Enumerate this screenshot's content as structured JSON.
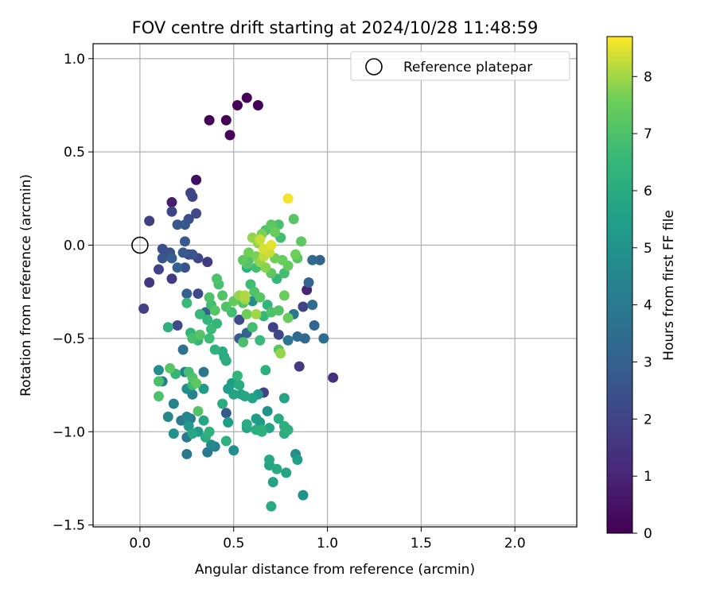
{
  "chart_data": {
    "type": "scatter",
    "title": "FOV centre drift starting at 2024/10/28 11:48:59",
    "xlabel": "Angular distance from reference (arcmin)",
    "ylabel": "Rotation from reference (arcmin)",
    "xlim": [
      -0.25,
      2.33
    ],
    "ylim": [
      -1.51,
      1.08
    ],
    "xticks": [
      0.0,
      0.5,
      1.0,
      1.5,
      2.0
    ],
    "xtick_labels": [
      "0.0",
      "0.5",
      "1.0",
      "1.5",
      "2.0"
    ],
    "yticks": [
      -1.5,
      -1.0,
      -0.5,
      0.0,
      0.5,
      1.0
    ],
    "ytick_labels": [
      "−1.5",
      "−1.0",
      "−0.5",
      "0.0",
      "0.5",
      "1.0"
    ],
    "grid": true,
    "colormap": "viridis",
    "colorbar": {
      "label": "Hours from first FF file",
      "min": 0,
      "max": 8.7,
      "ticks": [
        0,
        1,
        2,
        3,
        4,
        5,
        6,
        7,
        8
      ],
      "tick_labels": [
        "0",
        "1",
        "2",
        "3",
        "4",
        "5",
        "6",
        "7",
        "8"
      ]
    },
    "legend": {
      "placement": "top-right",
      "label": "Reference platepar"
    },
    "reference": {
      "x": 0.0,
      "y": 0.0
    },
    "points": [
      [
        0.37,
        0.67,
        0.05
      ],
      [
        0.46,
        0.67,
        0.05
      ],
      [
        0.48,
        0.59,
        0.05
      ],
      [
        0.52,
        0.75,
        0.05
      ],
      [
        0.57,
        0.79,
        0.05
      ],
      [
        0.63,
        0.75,
        0.05
      ],
      [
        0.3,
        0.35,
        0.4
      ],
      [
        0.17,
        0.23,
        0.8
      ],
      [
        0.05,
        0.13,
        1.8
      ],
      [
        0.17,
        0.18,
        2.0
      ],
      [
        0.28,
        0.26,
        2.0
      ],
      [
        0.27,
        0.28,
        2.1
      ],
      [
        0.3,
        0.17,
        2.2
      ],
      [
        0.26,
        0.14,
        2.3
      ],
      [
        0.2,
        0.11,
        2.7
      ],
      [
        0.24,
        0.11,
        2.7
      ],
      [
        0.24,
        0.02,
        2.8
      ],
      [
        0.12,
        -0.02,
        2.4
      ],
      [
        0.14,
        -0.04,
        2.2
      ],
      [
        0.16,
        -0.04,
        2.5
      ],
      [
        0.12,
        -0.07,
        2.6
      ],
      [
        0.17,
        -0.07,
        2.9
      ],
      [
        0.23,
        -0.04,
        2.8
      ],
      [
        0.26,
        -0.05,
        2.0
      ],
      [
        0.28,
        -0.05,
        2.6
      ],
      [
        0.31,
        -0.07,
        2.1
      ],
      [
        0.36,
        -0.09,
        1.7
      ],
      [
        0.2,
        -0.12,
        3.0
      ],
      [
        0.24,
        -0.12,
        2.5
      ],
      [
        0.1,
        -0.13,
        2.0
      ],
      [
        0.17,
        -0.18,
        1.7
      ],
      [
        0.05,
        -0.2,
        1.6
      ],
      [
        0.02,
        -0.34,
        1.9
      ],
      [
        0.25,
        -0.26,
        3.0
      ],
      [
        0.31,
        -0.26,
        2.2
      ],
      [
        0.35,
        -0.36,
        3.0
      ],
      [
        0.2,
        -0.43,
        2.2
      ],
      [
        0.23,
        -0.56,
        3.6
      ],
      [
        0.37,
        -0.28,
        7.0
      ],
      [
        0.38,
        -0.32,
        6.8
      ],
      [
        0.4,
        -0.35,
        7.2
      ],
      [
        0.32,
        -0.37,
        6.6
      ],
      [
        0.36,
        -0.4,
        6.4
      ],
      [
        0.41,
        -0.42,
        6.5
      ],
      [
        0.41,
        -0.18,
        7.0
      ],
      [
        0.42,
        -0.21,
        6.9
      ],
      [
        0.44,
        -0.27,
        7.1
      ],
      [
        0.46,
        -0.33,
        7.0
      ],
      [
        0.5,
        -0.3,
        7.4
      ],
      [
        0.49,
        -0.36,
        6.8
      ],
      [
        0.38,
        -0.45,
        6.6
      ],
      [
        0.37,
        -0.5,
        6.7
      ],
      [
        0.27,
        -0.47,
        6.4
      ],
      [
        0.28,
        -0.5,
        6.9
      ],
      [
        0.32,
        -0.48,
        7.1
      ],
      [
        0.31,
        -0.51,
        6.5
      ],
      [
        0.15,
        -0.44,
        6.2
      ],
      [
        0.25,
        -0.31,
        6.6
      ],
      [
        0.4,
        -0.56,
        6.3
      ],
      [
        0.44,
        -0.57,
        6.0
      ],
      [
        0.45,
        -0.6,
        5.8
      ],
      [
        0.46,
        -0.62,
        6.1
      ],
      [
        0.53,
        -0.27,
        7.9
      ],
      [
        0.56,
        -0.29,
        8.0
      ],
      [
        0.57,
        -0.37,
        7.6
      ],
      [
        0.62,
        -0.37,
        8.0
      ],
      [
        0.53,
        -0.4,
        2.2
      ],
      [
        0.6,
        -0.44,
        6.8
      ],
      [
        0.66,
        -0.38,
        6.5
      ],
      [
        0.7,
        -0.36,
        7.0
      ],
      [
        0.74,
        -0.35,
        7.1
      ],
      [
        0.77,
        -0.27,
        7.5
      ],
      [
        0.6,
        -0.3,
        4.8
      ],
      [
        0.64,
        -0.28,
        7.2
      ],
      [
        0.68,
        -0.32,
        6.4
      ],
      [
        0.79,
        -0.39,
        7.5
      ],
      [
        0.82,
        -0.37,
        3.8
      ],
      [
        0.53,
        -0.5,
        2.8
      ],
      [
        0.55,
        -0.52,
        6.9
      ],
      [
        0.57,
        -0.47,
        3.2
      ],
      [
        0.64,
        -0.51,
        6.6
      ],
      [
        0.71,
        -0.44,
        1.9
      ],
      [
        0.74,
        -0.48,
        2.1
      ],
      [
        0.74,
        -0.56,
        7.2
      ],
      [
        0.75,
        -0.58,
        7.9
      ],
      [
        0.79,
        -0.51,
        3.8
      ],
      [
        0.84,
        -0.49,
        3.4
      ],
      [
        0.88,
        -0.5,
        3.4
      ],
      [
        0.98,
        -0.5,
        3.5
      ],
      [
        0.93,
        -0.43,
        3.2
      ],
      [
        0.85,
        -0.65,
        1.7
      ],
      [
        1.03,
        -0.71,
        1.4
      ],
      [
        0.87,
        -0.33,
        2.0
      ],
      [
        0.92,
        -0.32,
        3.5
      ],
      [
        0.89,
        -0.24,
        1.0
      ],
      [
        0.9,
        -0.2,
        3.2
      ],
      [
        0.92,
        -0.08,
        3.3
      ],
      [
        0.96,
        -0.08,
        3.1
      ],
      [
        0.55,
        -0.08,
        7.3
      ],
      [
        0.57,
        -0.1,
        7.1
      ],
      [
        0.58,
        -0.04,
        7.6
      ],
      [
        0.6,
        0.04,
        7.9
      ],
      [
        0.64,
        0.03,
        8.3
      ],
      [
        0.62,
        -0.06,
        7.7
      ],
      [
        0.64,
        -0.09,
        7.9
      ],
      [
        0.66,
        -0.06,
        8.2
      ],
      [
        0.67,
        -0.12,
        7.8
      ],
      [
        0.7,
        -0.15,
        7.3
      ],
      [
        0.66,
        -0.02,
        8.4
      ],
      [
        0.7,
        0.0,
        8.5
      ],
      [
        0.69,
        -0.04,
        8.3
      ],
      [
        0.72,
        -0.07,
        7.6
      ],
      [
        0.67,
        0.08,
        7.0
      ],
      [
        0.7,
        0.11,
        7.3
      ],
      [
        0.72,
        0.07,
        7.5
      ],
      [
        0.75,
        0.04,
        6.8
      ],
      [
        0.74,
        0.11,
        6.9
      ],
      [
        0.79,
        0.25,
        8.6
      ],
      [
        0.82,
        0.14,
        7.2
      ],
      [
        0.86,
        0.02,
        7.3
      ],
      [
        0.83,
        -0.05,
        7.6
      ],
      [
        0.84,
        -0.07,
        7.2
      ],
      [
        0.79,
        -0.11,
        7.4
      ],
      [
        0.77,
        -0.15,
        6.8
      ],
      [
        0.73,
        -0.18,
        6.5
      ],
      [
        0.76,
        -0.08,
        7.5
      ],
      [
        0.62,
        -0.12,
        6.8
      ],
      [
        0.57,
        -0.12,
        6.2
      ],
      [
        0.59,
        -0.21,
        6.7
      ],
      [
        0.61,
        -0.25,
        7.0
      ],
      [
        0.56,
        -0.27,
        8.1
      ],
      [
        0.55,
        -0.31,
        7.1
      ],
      [
        0.65,
        0.06,
        7.7
      ],
      [
        0.63,
        0.01,
        7.9
      ],
      [
        0.58,
        -0.08,
        6.9
      ],
      [
        0.1,
        -0.67,
        4.8
      ],
      [
        0.12,
        -0.73,
        4.4
      ],
      [
        0.1,
        -0.73,
        6.9
      ],
      [
        0.1,
        -0.81,
        7.0
      ],
      [
        0.16,
        -0.66,
        7.2
      ],
      [
        0.19,
        -0.69,
        6.5
      ],
      [
        0.24,
        -0.68,
        4.2
      ],
      [
        0.26,
        -0.68,
        6.8
      ],
      [
        0.28,
        -0.71,
        7.0
      ],
      [
        0.28,
        -0.75,
        6.6
      ],
      [
        0.3,
        -0.74,
        7.3
      ],
      [
        0.25,
        -0.77,
        4.8
      ],
      [
        0.28,
        -0.8,
        4.3
      ],
      [
        0.34,
        -0.77,
        5.4
      ],
      [
        0.18,
        -0.85,
        4.4
      ],
      [
        0.31,
        -0.89,
        7.1
      ],
      [
        0.15,
        -0.92,
        4.6
      ],
      [
        0.22,
        -0.94,
        4.0
      ],
      [
        0.25,
        -0.92,
        4.5
      ],
      [
        0.27,
        -0.93,
        4.2
      ],
      [
        0.34,
        -0.94,
        5.8
      ],
      [
        0.26,
        -0.97,
        5.2
      ],
      [
        0.31,
        -1.0,
        5.3
      ],
      [
        0.35,
        -1.03,
        6.1
      ],
      [
        0.37,
        -1.0,
        6.3
      ],
      [
        0.18,
        -1.01,
        4.9
      ],
      [
        0.28,
        -1.01,
        5.8
      ],
      [
        0.25,
        -1.03,
        3.9
      ],
      [
        0.38,
        -1.07,
        4.6
      ],
      [
        0.4,
        -1.08,
        4.3
      ],
      [
        0.36,
        -1.11,
        3.9
      ],
      [
        0.25,
        -1.12,
        4.0
      ],
      [
        0.34,
        -0.68,
        3.9
      ],
      [
        0.44,
        -0.85,
        6.1
      ],
      [
        0.46,
        -0.9,
        2.8
      ],
      [
        0.47,
        -0.77,
        5.4
      ],
      [
        0.49,
        -0.74,
        5.5
      ],
      [
        0.5,
        -0.8,
        5.7
      ],
      [
        0.52,
        -0.7,
        6.4
      ],
      [
        0.53,
        -0.75,
        6.0
      ],
      [
        0.54,
        -0.8,
        5.6
      ],
      [
        0.56,
        -0.81,
        5.8
      ],
      [
        0.6,
        -0.82,
        5.6
      ],
      [
        0.63,
        -0.8,
        5.2
      ],
      [
        0.66,
        -0.79,
        2.0
      ],
      [
        0.67,
        -0.67,
        6.2
      ],
      [
        0.47,
        -0.95,
        5.5
      ],
      [
        0.46,
        -1.05,
        6.2
      ],
      [
        0.5,
        -1.1,
        4.8
      ],
      [
        0.57,
        -0.96,
        6.0
      ],
      [
        0.57,
        -0.98,
        5.8
      ],
      [
        0.62,
        -0.93,
        5.4
      ],
      [
        0.64,
        -0.95,
        5.2
      ],
      [
        0.62,
        -0.99,
        6.1
      ],
      [
        0.65,
        -0.99,
        6.2
      ],
      [
        0.68,
        -0.89,
        5.0
      ],
      [
        0.69,
        -0.98,
        5.7
      ],
      [
        0.65,
        -1.0,
        6.2
      ],
      [
        0.74,
        -0.93,
        6.0
      ],
      [
        0.77,
        -0.82,
        5.7
      ],
      [
        0.77,
        -0.97,
        6.2
      ],
      [
        0.77,
        -1.01,
        6.1
      ],
      [
        0.79,
        -0.99,
        6.2
      ],
      [
        0.83,
        -1.12,
        4.8
      ],
      [
        0.84,
        -1.15,
        5.5
      ],
      [
        0.78,
        -1.22,
        5.7
      ],
      [
        0.73,
        -1.2,
        5.9
      ],
      [
        0.69,
        -1.15,
        5.9
      ],
      [
        0.69,
        -1.18,
        5.6
      ],
      [
        0.71,
        -1.27,
        5.7
      ],
      [
        0.87,
        -1.34,
        5.0
      ],
      [
        0.7,
        -1.4,
        5.9
      ]
    ]
  }
}
